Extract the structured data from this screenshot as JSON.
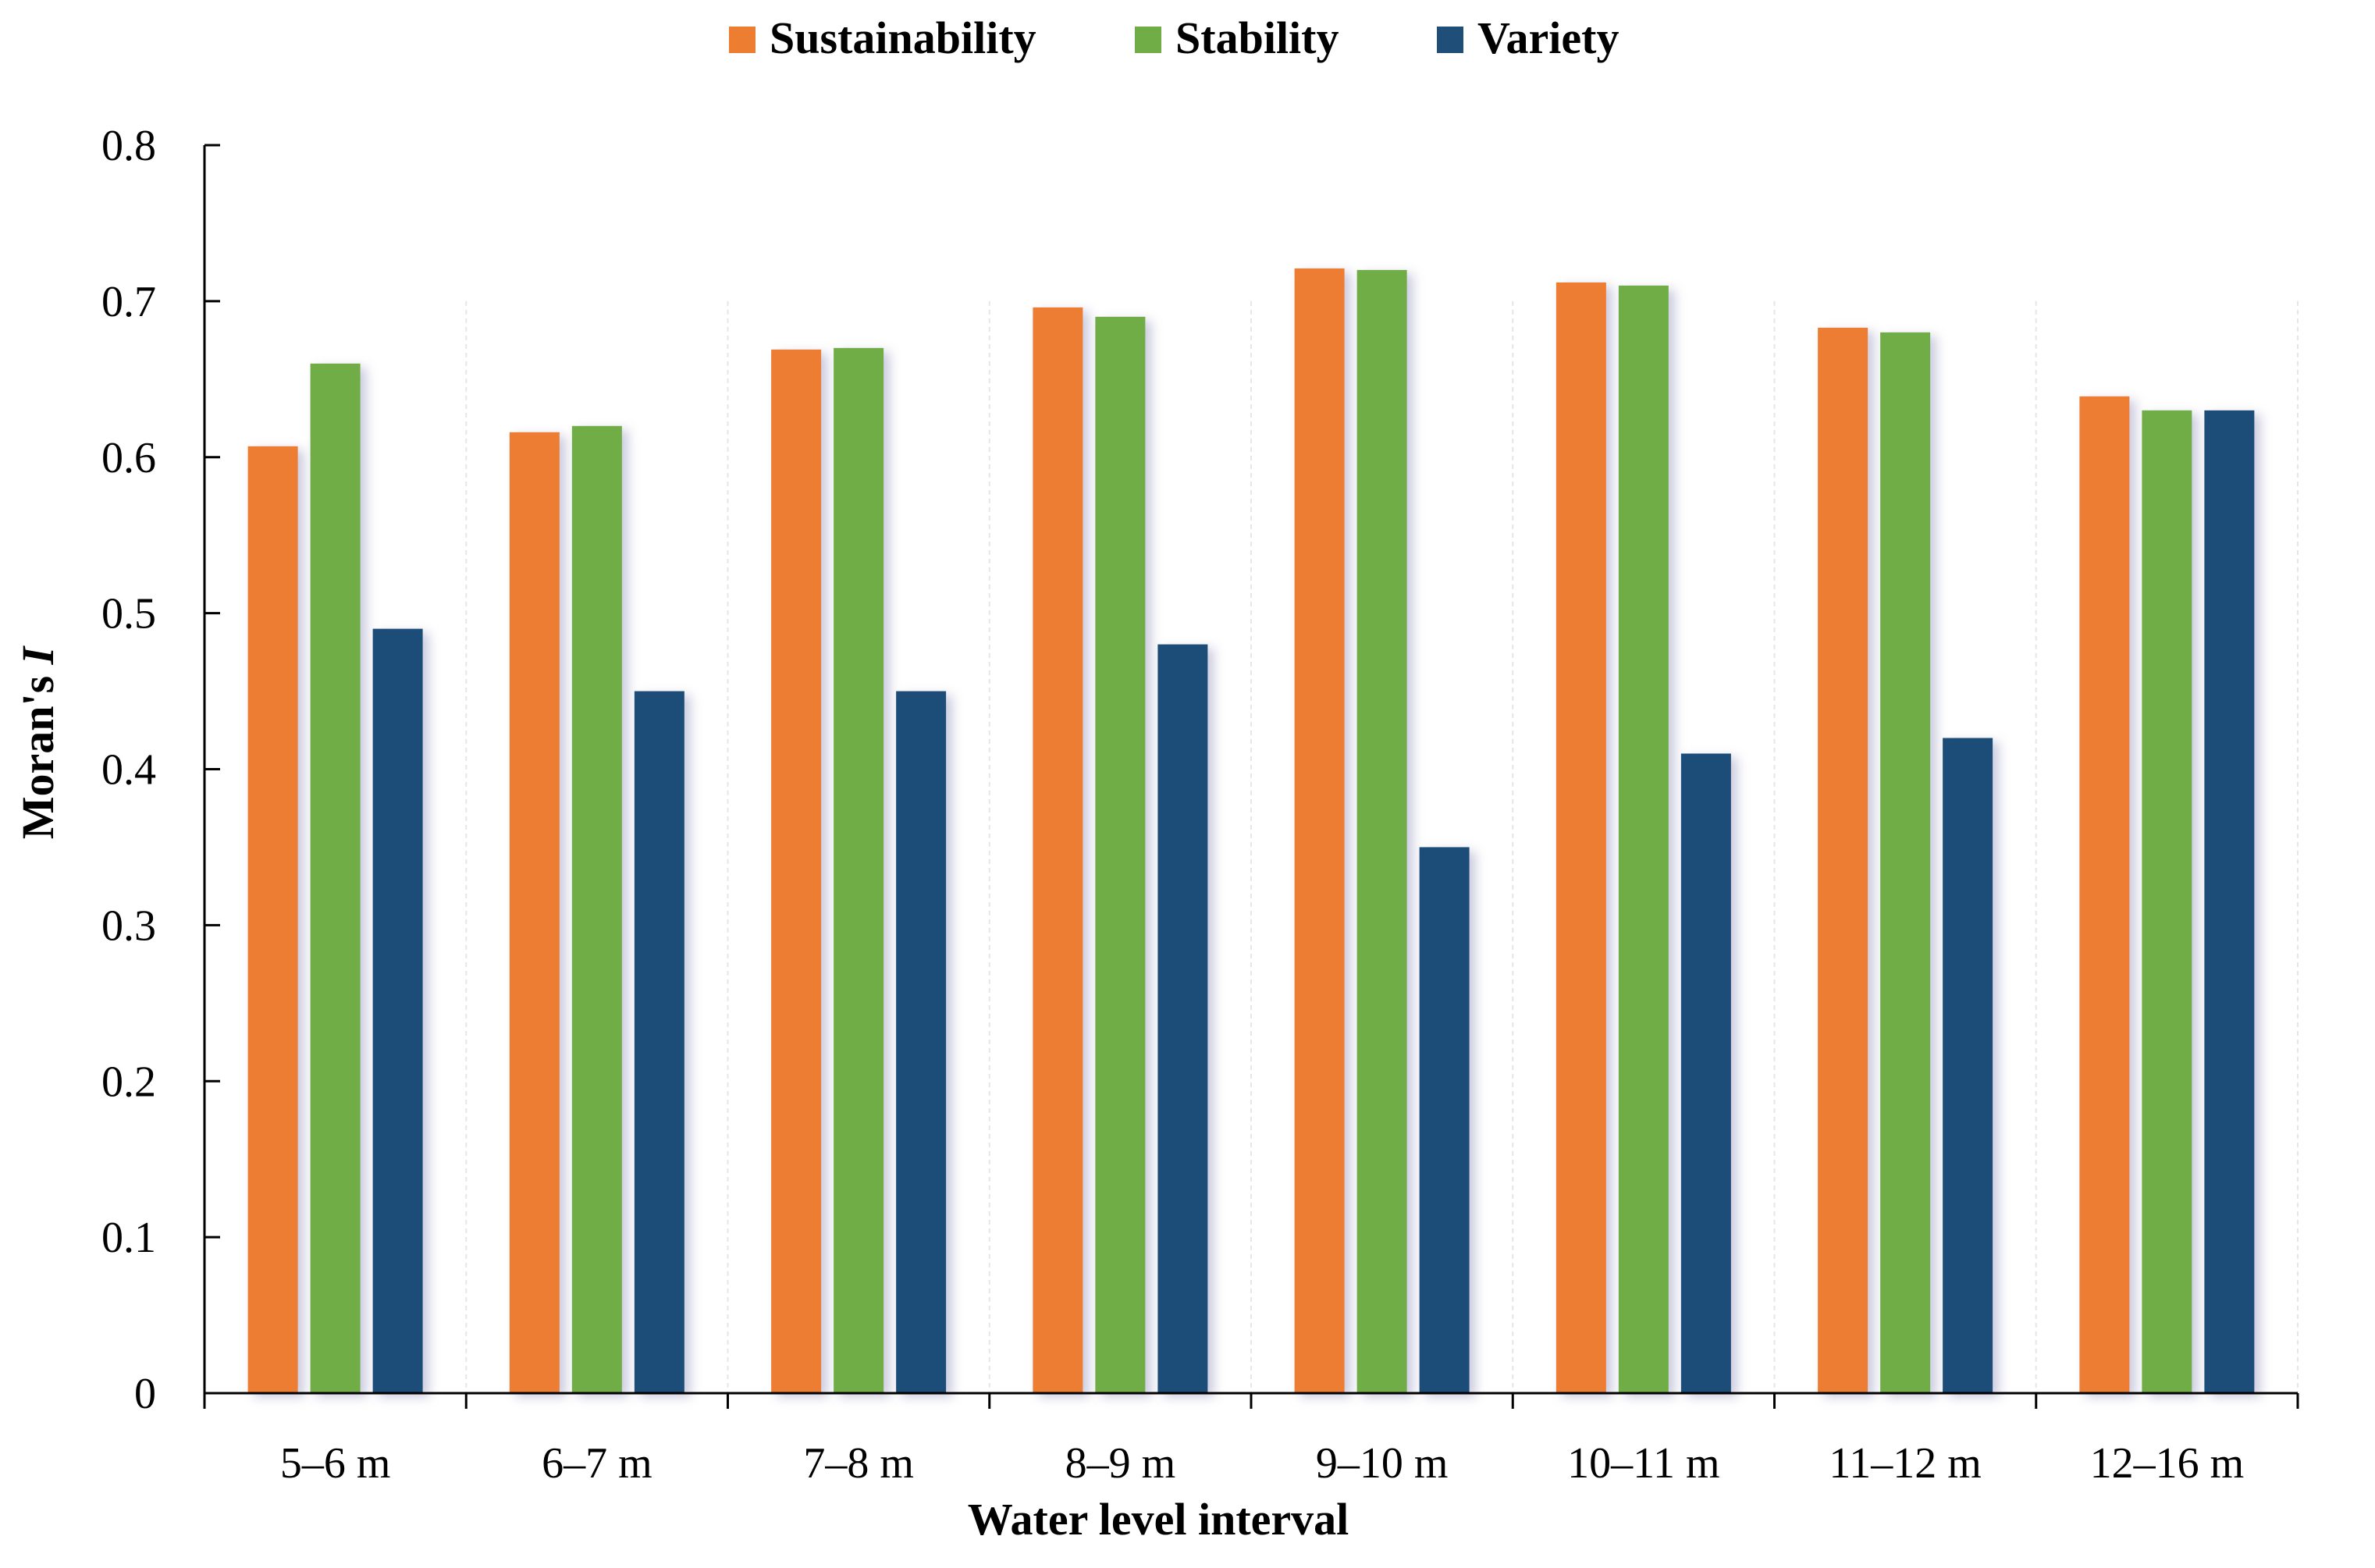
{
  "chart_data": {
    "type": "bar",
    "title": "",
    "xlabel": "Water level interval",
    "ylabel_main": "Moran's ",
    "ylabel_italic": "I",
    "ylim": [
      0,
      0.8
    ],
    "yticks": [
      0,
      0.1,
      0.2,
      0.3,
      0.4,
      0.5,
      0.6,
      0.7,
      0.8
    ],
    "ytick_labels": [
      "0",
      "0.1",
      "0.2",
      "0.3",
      "0.4",
      "0.5",
      "0.6",
      "0.7",
      "0.8"
    ],
    "grid": "vertical-dashed",
    "legend_position": "top-center",
    "categories": [
      "5–6 m",
      "6–7 m",
      "7–8 m",
      "8–9 m",
      "9–10 m",
      "10–11 m",
      "11–12 m",
      "12–16 m"
    ],
    "series": [
      {
        "name": "Sustainability",
        "color": "#ED7D31",
        "values": [
          0.607,
          0.616,
          0.669,
          0.696,
          0.721,
          0.712,
          0.683,
          0.639
        ]
      },
      {
        "name": "Stability",
        "color": "#70AD47",
        "values": [
          0.66,
          0.62,
          0.67,
          0.69,
          0.72,
          0.71,
          0.68,
          0.63
        ]
      },
      {
        "name": "Variety",
        "color": "#1F4E79",
        "values": [
          0.49,
          0.45,
          0.45,
          0.48,
          0.35,
          0.41,
          0.42,
          0.63
        ]
      }
    ]
  }
}
